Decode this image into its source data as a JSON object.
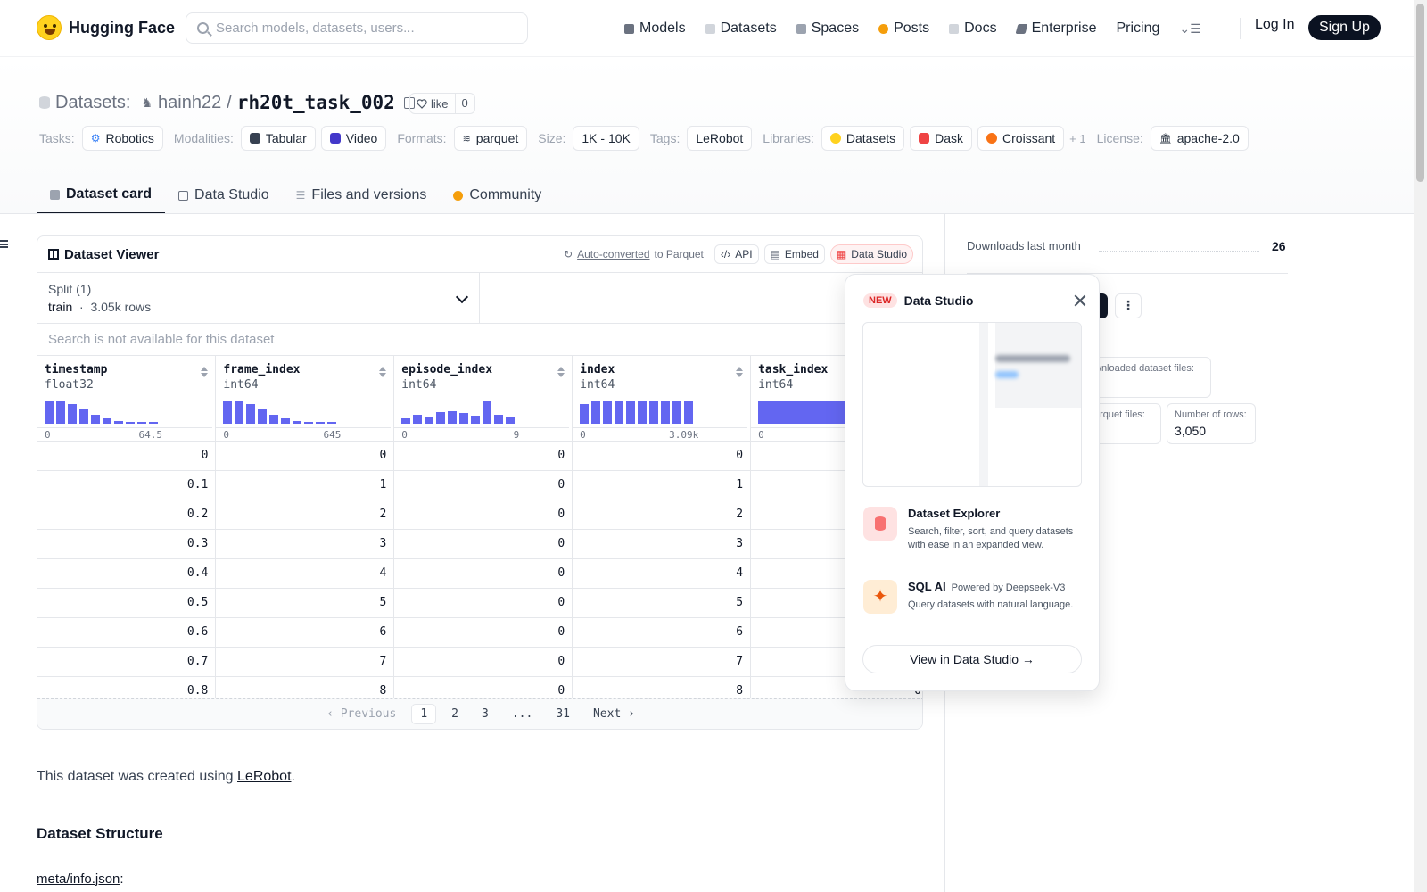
{
  "header": {
    "brand": "Hugging Face",
    "search_placeholder": "Search models, datasets, users...",
    "nav": [
      {
        "label": "Models",
        "color": "#6b7280"
      },
      {
        "label": "Datasets",
        "color": "#9ca3af"
      },
      {
        "label": "Spaces",
        "color": "#9ca3af"
      },
      {
        "label": "Posts",
        "color": "#f59e0b"
      },
      {
        "label": "Docs",
        "color": "#9ca3af"
      },
      {
        "label": "Enterprise",
        "color": "#6b7280"
      },
      {
        "label": "Pricing",
        "color": ""
      }
    ],
    "login": "Log In",
    "signup": "Sign Up"
  },
  "repo": {
    "section": "Datasets:",
    "owner": "hainh22",
    "sep": "/",
    "name": "rh20t_task_002",
    "like_label": "like",
    "like_count": "0"
  },
  "tags": {
    "tasks_label": "Tasks:",
    "tasks": [
      "Robotics"
    ],
    "modalities_label": "Modalities:",
    "modalities": [
      "Tabular",
      "Video"
    ],
    "formats_label": "Formats:",
    "formats": [
      "parquet"
    ],
    "size_label": "Size:",
    "size": "1K - 10K",
    "tags_label": "Tags:",
    "tags": [
      "LeRobot"
    ],
    "libraries_label": "Libraries:",
    "libraries": [
      "Datasets",
      "Dask",
      "Croissant"
    ],
    "libraries_more": "+ 1",
    "license_label": "License:",
    "license": "apache-2.0"
  },
  "tabs": [
    "Dataset card",
    "Data Studio",
    "Files and versions",
    "Community"
  ],
  "viewer": {
    "title": "Dataset Viewer",
    "autoconv_link": "Auto-converted",
    "autoconv_rest": "to Parquet",
    "api": "API",
    "embed": "Embed",
    "studio": "Data Studio",
    "split_label": "Split (1)",
    "split_name": "train",
    "split_rows": "3.05k rows",
    "search_note": "Search is not available for this dataset",
    "columns": [
      {
        "name": "timestamp",
        "type": "float32",
        "min": "0",
        "max": "64.5",
        "hist": [
          1.0,
          0.95,
          0.85,
          0.62,
          0.4,
          0.22,
          0.1,
          0.08,
          0.08,
          0.08
        ]
      },
      {
        "name": "frame_index",
        "type": "int64",
        "min": "0",
        "max": "645",
        "hist": [
          0.95,
          1.0,
          0.85,
          0.62,
          0.4,
          0.22,
          0.1,
          0.08,
          0.08,
          0.08
        ]
      },
      {
        "name": "episode_index",
        "type": "int64",
        "min": "0",
        "max": "9",
        "hist": [
          0.22,
          0.4,
          0.25,
          0.5,
          0.55,
          0.48,
          0.35,
          1.0,
          0.38,
          0.3
        ]
      },
      {
        "name": "index",
        "type": "int64",
        "min": "0",
        "max": "3.09k",
        "hist": [
          0.85,
          1.0,
          1.0,
          1.0,
          1.0,
          1.0,
          1.0,
          1.0,
          1.0,
          1.0
        ]
      },
      {
        "name": "task_index",
        "type": "int64",
        "min": "0",
        "max": "",
        "hist": [
          1.0
        ]
      }
    ],
    "rows": [
      [
        "0",
        "0",
        "0",
        "0",
        "0"
      ],
      [
        "0.1",
        "1",
        "0",
        "1",
        "0"
      ],
      [
        "0.2",
        "2",
        "0",
        "2",
        "0"
      ],
      [
        "0.3",
        "3",
        "0",
        "3",
        "0"
      ],
      [
        "0.4",
        "4",
        "0",
        "4",
        "0"
      ],
      [
        "0.5",
        "5",
        "0",
        "5",
        "0"
      ],
      [
        "0.6",
        "6",
        "0",
        "6",
        "0"
      ],
      [
        "0.7",
        "7",
        "0",
        "7",
        "0"
      ],
      [
        "0.8",
        "8",
        "0",
        "8",
        "0"
      ]
    ],
    "pager": {
      "prev": "Previous",
      "pages": [
        "1",
        "2",
        "3",
        "...",
        "31"
      ],
      "next": "Next"
    }
  },
  "side": {
    "downloads_label": "Downloads last month",
    "downloads_value": "26",
    "card1_label": "wnloaded dataset files:",
    "card2_label": "arquet files:",
    "rows_label": "Number of rows:",
    "rows_value": "3,050"
  },
  "popover": {
    "badge": "NEW",
    "title": "Data Studio",
    "f1_title": "Dataset Explorer",
    "f1_desc": "Search, filter, sort, and query datasets with ease in an expanded view.",
    "f2_title": "SQL AI",
    "f2_powered": "Powered by Deepseek-V3",
    "f2_desc": "Query datasets with natural language.",
    "button": "View in Data Studio →"
  },
  "body": {
    "intro_before": "This dataset was created using ",
    "intro_link": "LeRobot",
    "intro_after": ".",
    "heading": "Dataset Structure",
    "meta_link": "meta/info.json",
    "meta_colon": ":"
  }
}
